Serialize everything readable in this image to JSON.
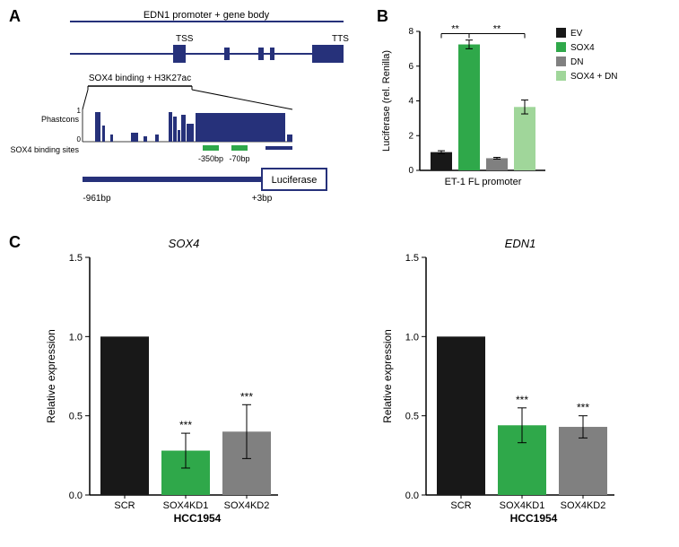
{
  "panelA": {
    "label": "A",
    "topTitle": "EDN1 promoter + gene body",
    "tss": "TSS",
    "tts": "TTS",
    "peakLabel": "SOX4 binding + H3K27ac",
    "phastconsLabel": "Phastcons",
    "phastconsMax": "1",
    "phastconsMin": "0",
    "bindingSitesLabel": "SOX4 binding sites",
    "site1": "-350bp",
    "site2": "-70bp",
    "leftCoord": "-961bp",
    "rightCoord": "+3bp",
    "luciferase": "Luciferase",
    "colors": {
      "navy": "#26317a",
      "green": "#2fa84a"
    }
  },
  "panelB": {
    "label": "B",
    "ylabel": "Luciferase (rel. Renilla)",
    "xlabel": "ET-1 FL promoter",
    "ylim": [
      0,
      8
    ],
    "yticks": [
      0,
      2,
      4,
      6,
      8
    ],
    "legend": [
      {
        "label": "EV",
        "color": "#181818"
      },
      {
        "label": "SOX4",
        "color": "#2fa84a"
      },
      {
        "label": "DN",
        "color": "#808080"
      },
      {
        "label": "SOX4 + DN",
        "color": "#a0d69a"
      }
    ],
    "bars": [
      {
        "value": 1.05,
        "error": 0.08,
        "color": "#181818"
      },
      {
        "value": 7.25,
        "error": 0.25,
        "color": "#2fa84a"
      },
      {
        "value": 0.7,
        "error": 0.05,
        "color": "#808080"
      },
      {
        "value": 3.65,
        "error": 0.4,
        "color": "#a0d69a"
      }
    ],
    "sig": "**",
    "colors": {
      "axis": "#000000"
    }
  },
  "panelC": {
    "label": "C",
    "charts": [
      {
        "title": "SOX4",
        "ylabel": "Relative expression",
        "ylim": [
          0.0,
          1.5
        ],
        "yticks": [
          "0.0",
          "0.5",
          "1.0",
          "1.5"
        ],
        "bars": [
          {
            "label": "SCR",
            "value": 1.0,
            "error": 0,
            "color": "#181818",
            "sig": ""
          },
          {
            "label": "SOX4KD1",
            "value": 0.28,
            "error": 0.11,
            "color": "#2fa84a",
            "sig": "***"
          },
          {
            "label": "SOX4KD2",
            "value": 0.4,
            "error": 0.17,
            "color": "#808080",
            "sig": "***"
          }
        ],
        "xfooter": "HCC1954"
      },
      {
        "title": "EDN1",
        "ylabel": "Relative expression",
        "ylim": [
          0.0,
          1.5
        ],
        "yticks": [
          "0.0",
          "0.5",
          "1.0",
          "1.5"
        ],
        "bars": [
          {
            "label": "SCR",
            "value": 1.0,
            "error": 0,
            "color": "#181818",
            "sig": ""
          },
          {
            "label": "SOX4KD1",
            "value": 0.44,
            "error": 0.11,
            "color": "#2fa84a",
            "sig": "***"
          },
          {
            "label": "SOX4KD2",
            "value": 0.43,
            "error": 0.07,
            "color": "#808080",
            "sig": "***"
          }
        ],
        "xfooter": "HCC1954"
      }
    ]
  }
}
